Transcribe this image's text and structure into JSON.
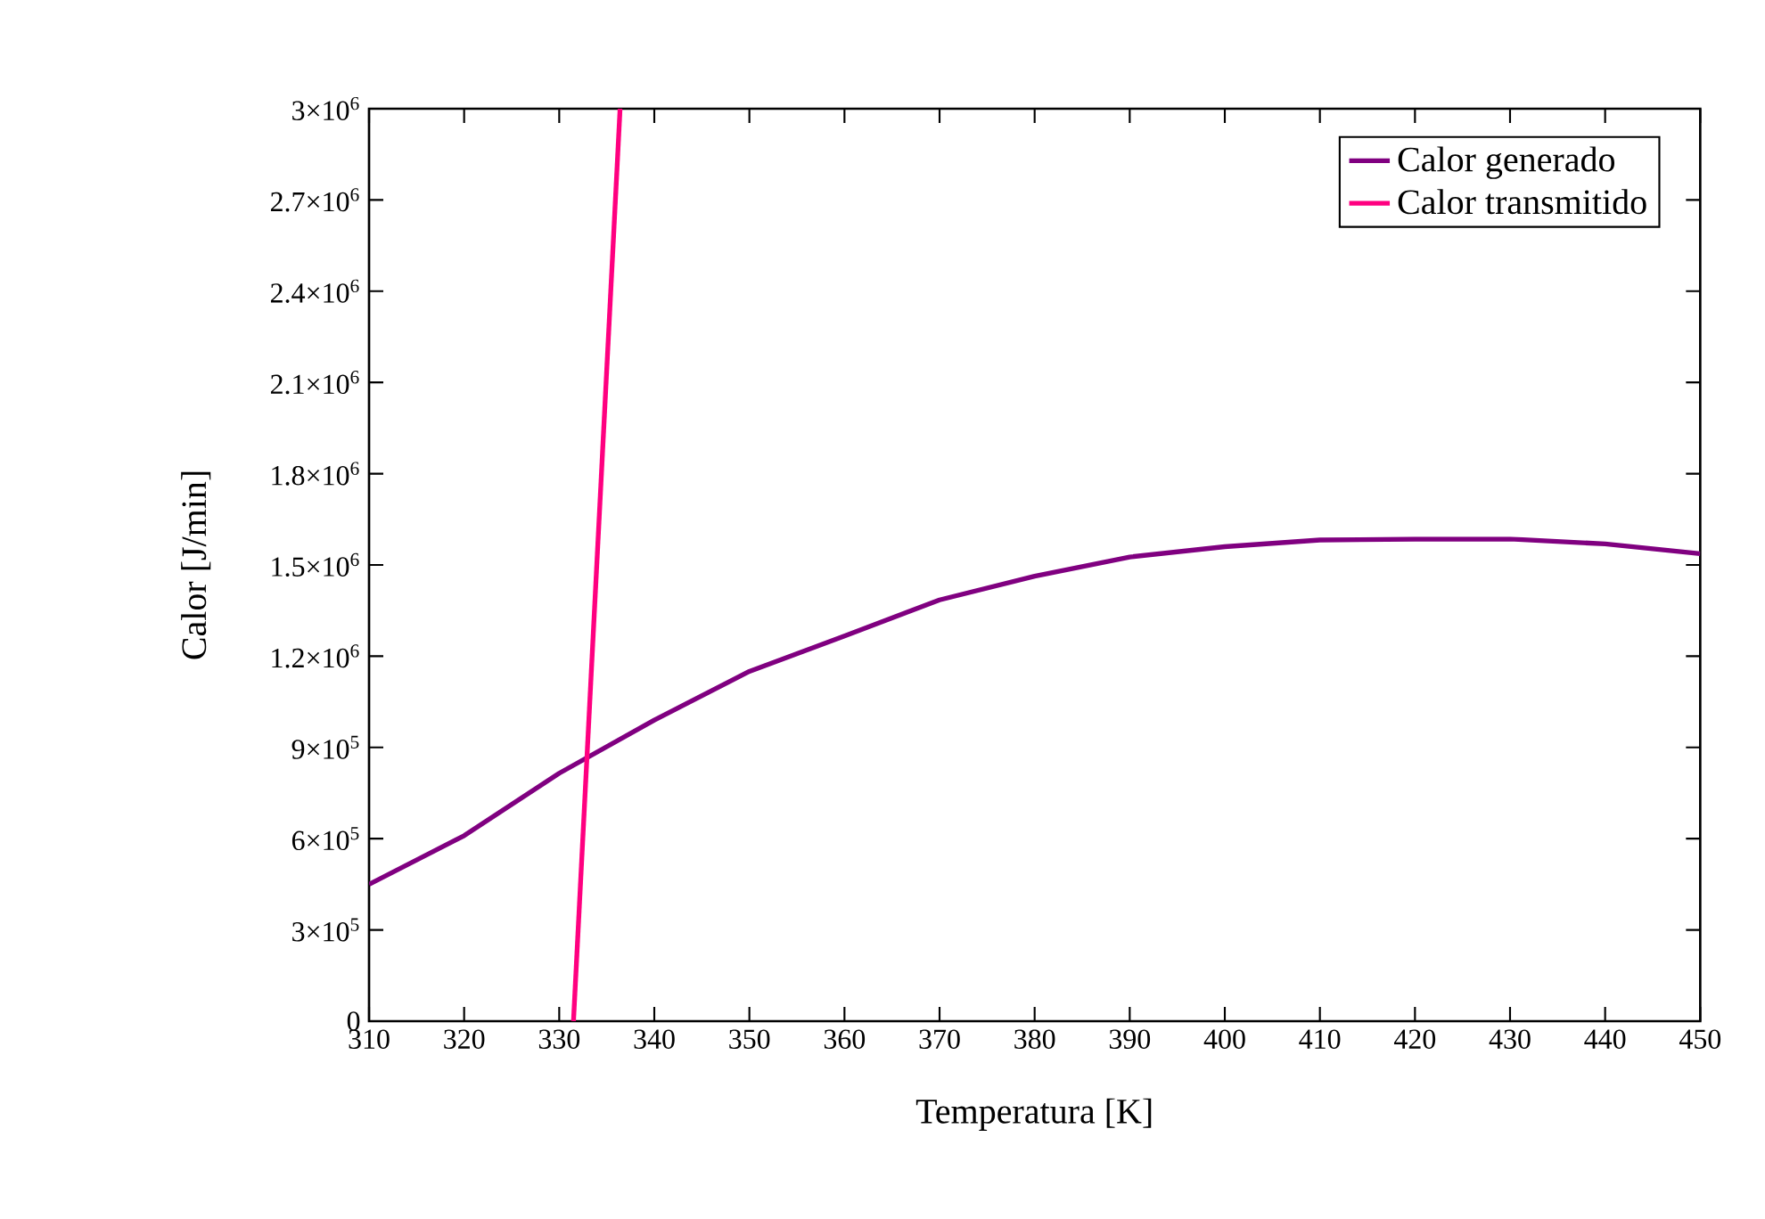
{
  "chart_data": {
    "type": "line",
    "xlabel": "Temperatura [K]",
    "ylabel": "Calor [J/min]",
    "xlim": [
      310,
      450
    ],
    "xticks": [
      310,
      320,
      330,
      340,
      350,
      360,
      370,
      380,
      390,
      400,
      410,
      420,
      430,
      440,
      450
    ],
    "ylim": [
      0,
      3000000
    ],
    "yticks": [
      0,
      {
        "value": 300000,
        "label": "3×10$^{5}$"
      },
      {
        "value": 600000,
        "label": "6×10$^{5}$"
      },
      {
        "value": 900000,
        "label": "9×10$^{5}$"
      },
      {
        "value": 1200000,
        "label": "1.2×10$^{6}$"
      },
      {
        "value": 1500000,
        "label": "1.5×10$^{6}$"
      },
      {
        "value": 1800000,
        "label": "1.8×10$^{6}$"
      },
      {
        "value": 2100000,
        "label": "2.1×10$^{6}$"
      },
      {
        "value": 2400000,
        "label": "2.4×10$^{6}$"
      },
      {
        "value": 2700000,
        "label": "2.7×10$^{6}$"
      },
      {
        "value": 3000000,
        "label": "3×10$^{6}$"
      }
    ],
    "legend": "top right",
    "grid": false,
    "series": [
      {
        "name": "Calor generado",
        "color": "#800080",
        "x": [
          310,
          320,
          330,
          340,
          350,
          360,
          370,
          380,
          390,
          400,
          410,
          420,
          430,
          440,
          450
        ],
        "values": [
          450000,
          610000,
          815000,
          990000,
          1150000,
          1266000,
          1385000,
          1463000,
          1526000,
          1560000,
          1582000,
          1585000,
          1585000,
          1569000,
          1537000
        ]
      },
      {
        "name": "Calor transmitido",
        "color": "#ff0080",
        "x": [
          331.5,
          336.4
        ],
        "values": [
          0,
          3000000
        ]
      }
    ]
  }
}
